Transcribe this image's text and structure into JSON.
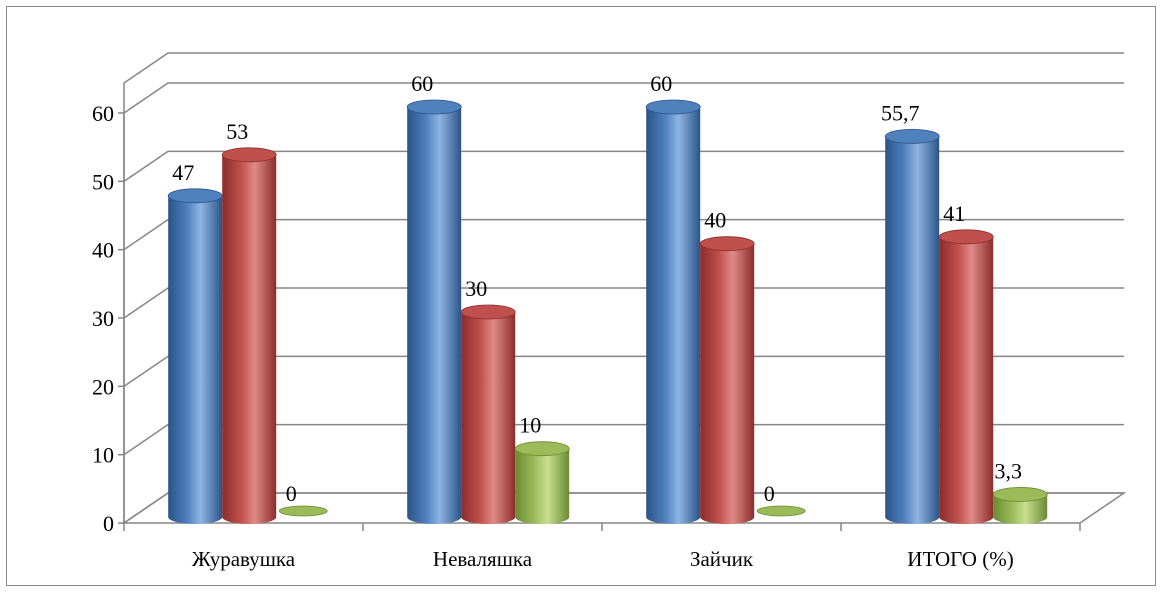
{
  "chart_data": {
    "type": "bar",
    "style": "3d-cylinder",
    "categories": [
      "Журавушка",
      "Неваляшка",
      "Зайчик",
      "ИТОГО (%)"
    ],
    "series": [
      {
        "values": [
          47,
          60,
          60,
          55.7
        ],
        "labels": [
          "47",
          "60",
          "60",
          "55,7"
        ],
        "color": "#4f81bd",
        "dark": "#2a5489",
        "light": "#8fb4e3"
      },
      {
        "values": [
          53,
          30,
          40,
          41
        ],
        "labels": [
          "53",
          "30",
          "40",
          "41"
        ],
        "color": "#c0504d",
        "dark": "#8b2d2b",
        "light": "#e08a87"
      },
      {
        "values": [
          0,
          10,
          0,
          3.3
        ],
        "labels": [
          "0",
          "10",
          "0",
          "3,3"
        ],
        "color": "#9bbb59",
        "dark": "#6a8a33",
        "light": "#c8df8f"
      }
    ],
    "yticks": [
      "0",
      "10",
      "20",
      "30",
      "40",
      "50",
      "60"
    ],
    "ylim": [
      0,
      60
    ],
    "grid": true,
    "legend": "none"
  }
}
